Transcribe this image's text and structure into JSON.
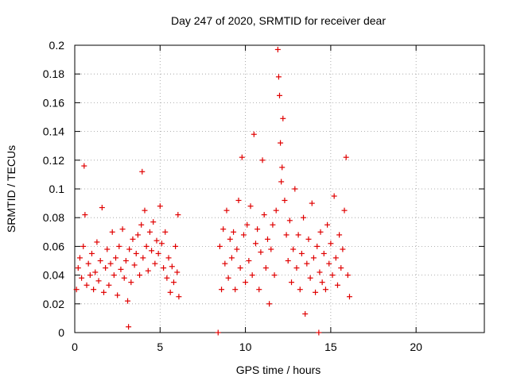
{
  "chart_data": {
    "type": "scatter",
    "title": "Day 247 of 2020, SRMTID for receiver dear",
    "xlabel": "GPS time / hours",
    "ylabel": "SRMTID / TECUs",
    "xlim": [
      0,
      24
    ],
    "ylim": [
      0,
      0.2
    ],
    "x_ticks": [
      0,
      5,
      10,
      15,
      20
    ],
    "x_tick_labels": [
      "0",
      "5",
      "10",
      "15",
      "20"
    ],
    "y_ticks": [
      0,
      0.02,
      0.04,
      0.06,
      0.08,
      0.1,
      0.12,
      0.14,
      0.16,
      0.18,
      0.2
    ],
    "y_tick_labels": [
      "0",
      "0.02",
      "0.04",
      "0.06",
      "0.08",
      "0.1",
      "0.12",
      "0.14",
      "0.16",
      "0.18",
      "0.2"
    ],
    "grid": true,
    "marker": "plus",
    "marker_color": "#e00000",
    "points": [
      [
        0.1,
        0.03
      ],
      [
        0.2,
        0.045
      ],
      [
        0.3,
        0.052
      ],
      [
        0.4,
        0.038
      ],
      [
        0.5,
        0.06
      ],
      [
        0.55,
        0.116
      ],
      [
        0.6,
        0.082
      ],
      [
        0.7,
        0.033
      ],
      [
        0.8,
        0.048
      ],
      [
        0.9,
        0.04
      ],
      [
        1.0,
        0.055
      ],
      [
        1.1,
        0.03
      ],
      [
        1.2,
        0.042
      ],
      [
        1.3,
        0.063
      ],
      [
        1.4,
        0.036
      ],
      [
        1.5,
        0.05
      ],
      [
        1.6,
        0.087
      ],
      [
        1.7,
        0.028
      ],
      [
        1.8,
        0.045
      ],
      [
        1.9,
        0.058
      ],
      [
        2.0,
        0.033
      ],
      [
        2.1,
        0.048
      ],
      [
        2.2,
        0.07
      ],
      [
        2.3,
        0.04
      ],
      [
        2.4,
        0.052
      ],
      [
        2.5,
        0.026
      ],
      [
        2.6,
        0.06
      ],
      [
        2.7,
        0.044
      ],
      [
        2.8,
        0.072
      ],
      [
        2.9,
        0.038
      ],
      [
        3.0,
        0.05
      ],
      [
        3.1,
        0.022
      ],
      [
        3.15,
        0.004
      ],
      [
        3.2,
        0.058
      ],
      [
        3.3,
        0.035
      ],
      [
        3.4,
        0.065
      ],
      [
        3.5,
        0.047
      ],
      [
        3.6,
        0.055
      ],
      [
        3.7,
        0.068
      ],
      [
        3.8,
        0.04
      ],
      [
        3.9,
        0.075
      ],
      [
        3.95,
        0.112
      ],
      [
        4.0,
        0.052
      ],
      [
        4.1,
        0.085
      ],
      [
        4.2,
        0.06
      ],
      [
        4.3,
        0.043
      ],
      [
        4.4,
        0.07
      ],
      [
        4.5,
        0.057
      ],
      [
        4.6,
        0.077
      ],
      [
        4.7,
        0.048
      ],
      [
        4.8,
        0.064
      ],
      [
        4.9,
        0.055
      ],
      [
        5.0,
        0.088
      ],
      [
        5.1,
        0.062
      ],
      [
        5.2,
        0.045
      ],
      [
        5.3,
        0.07
      ],
      [
        5.4,
        0.038
      ],
      [
        5.5,
        0.052
      ],
      [
        5.6,
        0.028
      ],
      [
        5.7,
        0.046
      ],
      [
        5.8,
        0.035
      ],
      [
        5.9,
        0.06
      ],
      [
        6.0,
        0.042
      ],
      [
        6.05,
        0.082
      ],
      [
        6.1,
        0.025
      ],
      [
        8.4,
        0.0
      ],
      [
        8.5,
        0.06
      ],
      [
        8.6,
        0.03
      ],
      [
        8.7,
        0.072
      ],
      [
        8.8,
        0.048
      ],
      [
        8.9,
        0.085
      ],
      [
        9.0,
        0.038
      ],
      [
        9.1,
        0.065
      ],
      [
        9.2,
        0.052
      ],
      [
        9.3,
        0.07
      ],
      [
        9.4,
        0.03
      ],
      [
        9.5,
        0.058
      ],
      [
        9.6,
        0.092
      ],
      [
        9.7,
        0.045
      ],
      [
        9.8,
        0.122
      ],
      [
        9.9,
        0.068
      ],
      [
        10.0,
        0.035
      ],
      [
        10.1,
        0.075
      ],
      [
        10.2,
        0.05
      ],
      [
        10.3,
        0.088
      ],
      [
        10.4,
        0.04
      ],
      [
        10.5,
        0.138
      ],
      [
        10.6,
        0.062
      ],
      [
        10.7,
        0.072
      ],
      [
        10.8,
        0.03
      ],
      [
        10.9,
        0.056
      ],
      [
        11.0,
        0.12
      ],
      [
        11.1,
        0.082
      ],
      [
        11.2,
        0.045
      ],
      [
        11.3,
        0.065
      ],
      [
        11.4,
        0.02
      ],
      [
        11.5,
        0.058
      ],
      [
        11.6,
        0.075
      ],
      [
        11.7,
        0.04
      ],
      [
        11.8,
        0.085
      ],
      [
        11.9,
        0.197
      ],
      [
        11.95,
        0.178
      ],
      [
        12.0,
        0.165
      ],
      [
        12.05,
        0.132
      ],
      [
        12.1,
        0.105
      ],
      [
        12.15,
        0.115
      ],
      [
        12.2,
        0.149
      ],
      [
        12.3,
        0.092
      ],
      [
        12.4,
        0.068
      ],
      [
        12.5,
        0.05
      ],
      [
        12.6,
        0.078
      ],
      [
        12.7,
        0.035
      ],
      [
        12.8,
        0.058
      ],
      [
        12.9,
        0.1
      ],
      [
        13.0,
        0.045
      ],
      [
        13.1,
        0.068
      ],
      [
        13.2,
        0.03
      ],
      [
        13.3,
        0.055
      ],
      [
        13.4,
        0.08
      ],
      [
        13.5,
        0.013
      ],
      [
        13.6,
        0.048
      ],
      [
        13.7,
        0.065
      ],
      [
        13.8,
        0.038
      ],
      [
        13.9,
        0.09
      ],
      [
        14.0,
        0.052
      ],
      [
        14.1,
        0.028
      ],
      [
        14.2,
        0.06
      ],
      [
        14.3,
        0.0
      ],
      [
        14.35,
        0.042
      ],
      [
        14.4,
        0.07
      ],
      [
        14.5,
        0.035
      ],
      [
        14.6,
        0.055
      ],
      [
        14.7,
        0.03
      ],
      [
        14.8,
        0.075
      ],
      [
        14.9,
        0.048
      ],
      [
        15.0,
        0.062
      ],
      [
        15.1,
        0.04
      ],
      [
        15.2,
        0.095
      ],
      [
        15.3,
        0.052
      ],
      [
        15.4,
        0.033
      ],
      [
        15.5,
        0.068
      ],
      [
        15.6,
        0.045
      ],
      [
        15.7,
        0.058
      ],
      [
        15.8,
        0.085
      ],
      [
        15.9,
        0.122
      ],
      [
        16.0,
        0.04
      ],
      [
        16.1,
        0.025
      ]
    ]
  }
}
